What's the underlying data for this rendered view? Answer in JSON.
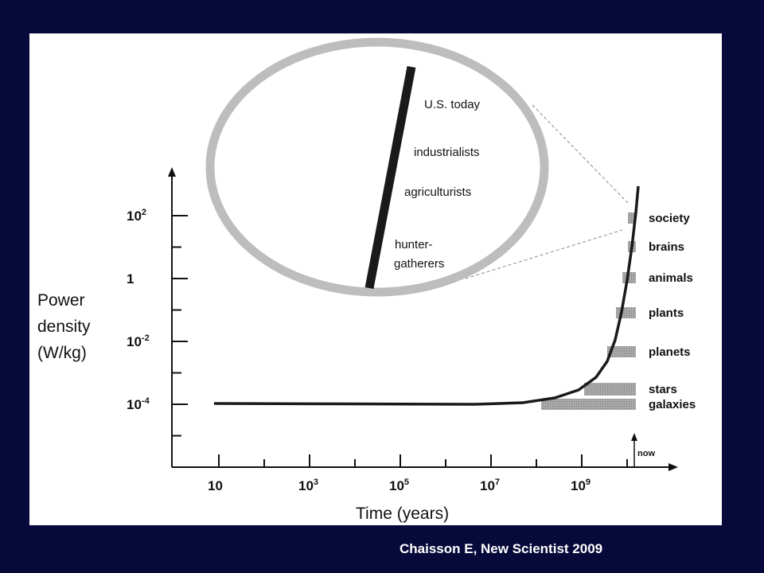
{
  "chart_data": {
    "type": "line",
    "xlabel": "Time (years)",
    "ylabel_lines": [
      "Power",
      "density",
      "(W/kg)"
    ],
    "x_scale": "log",
    "y_scale": "log",
    "x_ticks": [
      {
        "base": "10",
        "exp": ""
      },
      {
        "base": "10",
        "exp": "3"
      },
      {
        "base": "10",
        "exp": "5"
      },
      {
        "base": "10",
        "exp": "7"
      },
      {
        "base": "10",
        "exp": "9"
      }
    ],
    "y_ticks": [
      {
        "base": "10",
        "exp": "2"
      },
      {
        "base": "1",
        "exp": ""
      },
      {
        "base": "10",
        "exp": "-2"
      },
      {
        "base": "10",
        "exp": "-4"
      }
    ],
    "now_label": "now",
    "bands": [
      {
        "label": "society",
        "value": 100
      },
      {
        "label": "brains",
        "value": 15
      },
      {
        "label": "animals",
        "value": 2
      },
      {
        "label": "plants",
        "value": 0.1
      },
      {
        "label": "planets",
        "value": 0.005
      },
      {
        "label": "stars",
        "value": 0.0002
      },
      {
        "label": "galaxies",
        "value": 0.0001
      }
    ],
    "inset_labels": [
      "U.S. today",
      "industrialists",
      "agriculturists",
      "hunter-",
      "gatherers"
    ],
    "colors": {
      "curve": "#1a1a1a",
      "bands": "#9a9a9a",
      "ellipse": "#bdbdbd"
    }
  },
  "citation": "Chaisson E, New Scientist 2009"
}
